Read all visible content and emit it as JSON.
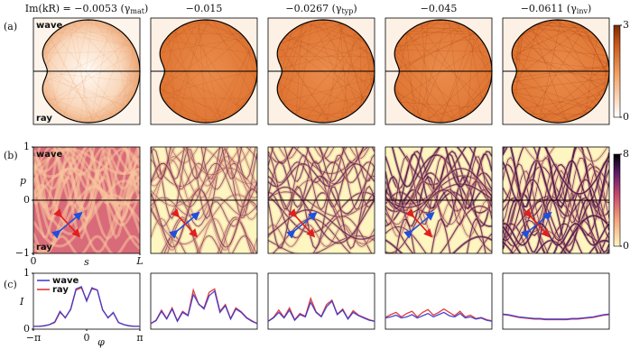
{
  "header_prefix": "Im(kR) =",
  "headers": [
    {
      "text": "−0.0053",
      "open": "(γ",
      "sub": "mat",
      "close": ")"
    },
    {
      "text": "−0.015"
    },
    {
      "text": "−0.0267",
      "open": "(γ",
      "sub": "typ",
      "close": ")"
    },
    {
      "text": "−0.045"
    },
    {
      "text": "−0.0611",
      "open": "(γ",
      "sub": "inv",
      "close": ")"
    }
  ],
  "row_labels": [
    "(a)",
    "(b)",
    "(c)"
  ],
  "row_a": {
    "top_label": "wave",
    "bottom_label": "ray",
    "colorbar": {
      "lim": [
        0,
        3
      ],
      "ticks": [
        0,
        3
      ]
    }
  },
  "row_b": {
    "top_label": "wave",
    "bottom_label": "ray",
    "ylabel": "p",
    "xlabel": "s",
    "ylim": [
      -1,
      1
    ],
    "yticks": [
      1,
      0,
      {
        "value": -1,
        "label": "−1"
      }
    ],
    "xlim": [
      0,
      1
    ],
    "xticks": [
      0,
      {
        "value": 1,
        "label": "L"
      }
    ],
    "colorbar": {
      "lim": [
        0,
        8
      ],
      "ticks": [
        0,
        8
      ]
    }
  },
  "chart_data": [
    {
      "type": "line",
      "ylabel": "I",
      "xlabel": "φ",
      "x": [
        -3.14,
        -2.83,
        -2.51,
        -2.2,
        -1.88,
        -1.57,
        -1.26,
        -0.94,
        -0.63,
        -0.31,
        0,
        0.31,
        0.63,
        0.94,
        1.26,
        1.57,
        1.88,
        2.2,
        2.51,
        2.83,
        3.14
      ],
      "xlim": [
        -3.1416,
        3.1416
      ],
      "xticks": [
        {
          "value": -3.1416,
          "label": "−π"
        },
        0,
        {
          "value": 3.1416,
          "label": "π"
        }
      ],
      "ylim": [
        0,
        1
      ],
      "yticks": [
        0,
        1
      ],
      "series": [
        {
          "name": "wave",
          "color": "#3535d0",
          "values": [
            0.05,
            0.05,
            0.06,
            0.08,
            0.13,
            0.32,
            0.2,
            0.36,
            0.72,
            0.76,
            0.5,
            0.74,
            0.7,
            0.35,
            0.2,
            0.3,
            0.12,
            0.08,
            0.06,
            0.05,
            0.05
          ]
        },
        {
          "name": "ray",
          "color": "#e02828",
          "values": [
            0.05,
            0.05,
            0.06,
            0.08,
            0.12,
            0.3,
            0.21,
            0.35,
            0.7,
            0.74,
            0.52,
            0.72,
            0.7,
            0.34,
            0.21,
            0.29,
            0.12,
            0.08,
            0.06,
            0.05,
            0.05
          ]
        }
      ]
    },
    {
      "type": "line",
      "x": [
        -3.14,
        -2.83,
        -2.51,
        -2.2,
        -1.88,
        -1.57,
        -1.26,
        -0.94,
        -0.63,
        -0.31,
        0,
        0.31,
        0.63,
        0.94,
        1.26,
        1.57,
        1.88,
        2.2,
        2.51,
        2.83,
        3.14
      ],
      "xlim": [
        -3.1416,
        3.1416
      ],
      "ylim": [
        0,
        1
      ],
      "series": [
        {
          "color": "#3535d0",
          "values": [
            0.1,
            0.15,
            0.32,
            0.18,
            0.36,
            0.14,
            0.3,
            0.24,
            0.62,
            0.45,
            0.36,
            0.6,
            0.68,
            0.3,
            0.42,
            0.18,
            0.36,
            0.3,
            0.2,
            0.14,
            0.1
          ]
        },
        {
          "color": "#e02828",
          "values": [
            0.1,
            0.16,
            0.34,
            0.19,
            0.38,
            0.15,
            0.32,
            0.25,
            0.7,
            0.44,
            0.38,
            0.66,
            0.72,
            0.32,
            0.44,
            0.19,
            0.38,
            0.31,
            0.21,
            0.15,
            0.1
          ]
        }
      ]
    },
    {
      "type": "line",
      "x": [
        -3.14,
        -2.83,
        -2.51,
        -2.2,
        -1.88,
        -1.57,
        -1.26,
        -0.94,
        -0.63,
        -0.31,
        0,
        0.31,
        0.63,
        0.94,
        1.26,
        1.57,
        1.88,
        2.2,
        2.51,
        2.83,
        3.14
      ],
      "xlim": [
        -3.1416,
        3.1416
      ],
      "ylim": [
        0,
        1
      ],
      "series": [
        {
          "color": "#3535d0",
          "values": [
            0.14,
            0.2,
            0.3,
            0.2,
            0.34,
            0.16,
            0.26,
            0.22,
            0.48,
            0.3,
            0.22,
            0.4,
            0.5,
            0.26,
            0.34,
            0.18,
            0.3,
            0.24,
            0.2,
            0.16,
            0.14
          ]
        },
        {
          "color": "#e02828",
          "values": [
            0.14,
            0.21,
            0.34,
            0.21,
            0.38,
            0.17,
            0.28,
            0.23,
            0.55,
            0.31,
            0.23,
            0.44,
            0.52,
            0.27,
            0.36,
            0.19,
            0.33,
            0.25,
            0.21,
            0.17,
            0.14
          ]
        }
      ]
    },
    {
      "type": "line",
      "x": [
        -3.14,
        -2.83,
        -2.51,
        -2.2,
        -1.88,
        -1.57,
        -1.26,
        -0.94,
        -0.63,
        -0.31,
        0,
        0.31,
        0.63,
        0.94,
        1.26,
        1.57,
        1.88,
        2.2,
        2.51,
        2.83,
        3.14
      ],
      "xlim": [
        -3.1416,
        3.1416
      ],
      "ylim": [
        0,
        1
      ],
      "series": [
        {
          "color": "#3535d0",
          "values": [
            0.2,
            0.22,
            0.25,
            0.2,
            0.22,
            0.26,
            0.2,
            0.24,
            0.28,
            0.22,
            0.26,
            0.3,
            0.24,
            0.22,
            0.28,
            0.2,
            0.22,
            0.18,
            0.2,
            0.16,
            0.14
          ]
        },
        {
          "color": "#e02828",
          "values": [
            0.21,
            0.26,
            0.3,
            0.22,
            0.28,
            0.32,
            0.22,
            0.3,
            0.35,
            0.25,
            0.3,
            0.36,
            0.3,
            0.24,
            0.32,
            0.22,
            0.25,
            0.19,
            0.21,
            0.17,
            0.15
          ]
        }
      ]
    },
    {
      "type": "line",
      "x": [
        -3.14,
        -2.83,
        -2.51,
        -2.2,
        -1.88,
        -1.57,
        -1.26,
        -0.94,
        -0.63,
        -0.31,
        0,
        0.31,
        0.63,
        0.94,
        1.26,
        1.57,
        1.88,
        2.2,
        2.51,
        2.83,
        3.14
      ],
      "xlim": [
        -3.1416,
        3.1416
      ],
      "ylim": [
        0,
        1
      ],
      "series": [
        {
          "color": "#3535d0",
          "values": [
            0.27,
            0.26,
            0.24,
            0.22,
            0.21,
            0.2,
            0.19,
            0.19,
            0.18,
            0.18,
            0.18,
            0.18,
            0.18,
            0.19,
            0.19,
            0.2,
            0.21,
            0.22,
            0.24,
            0.26,
            0.27
          ]
        },
        {
          "color": "#e02828",
          "values": [
            0.26,
            0.25,
            0.23,
            0.21,
            0.2,
            0.19,
            0.18,
            0.18,
            0.17,
            0.17,
            0.17,
            0.17,
            0.17,
            0.18,
            0.18,
            0.19,
            0.2,
            0.21,
            0.23,
            0.25,
            0.26
          ]
        }
      ]
    }
  ]
}
